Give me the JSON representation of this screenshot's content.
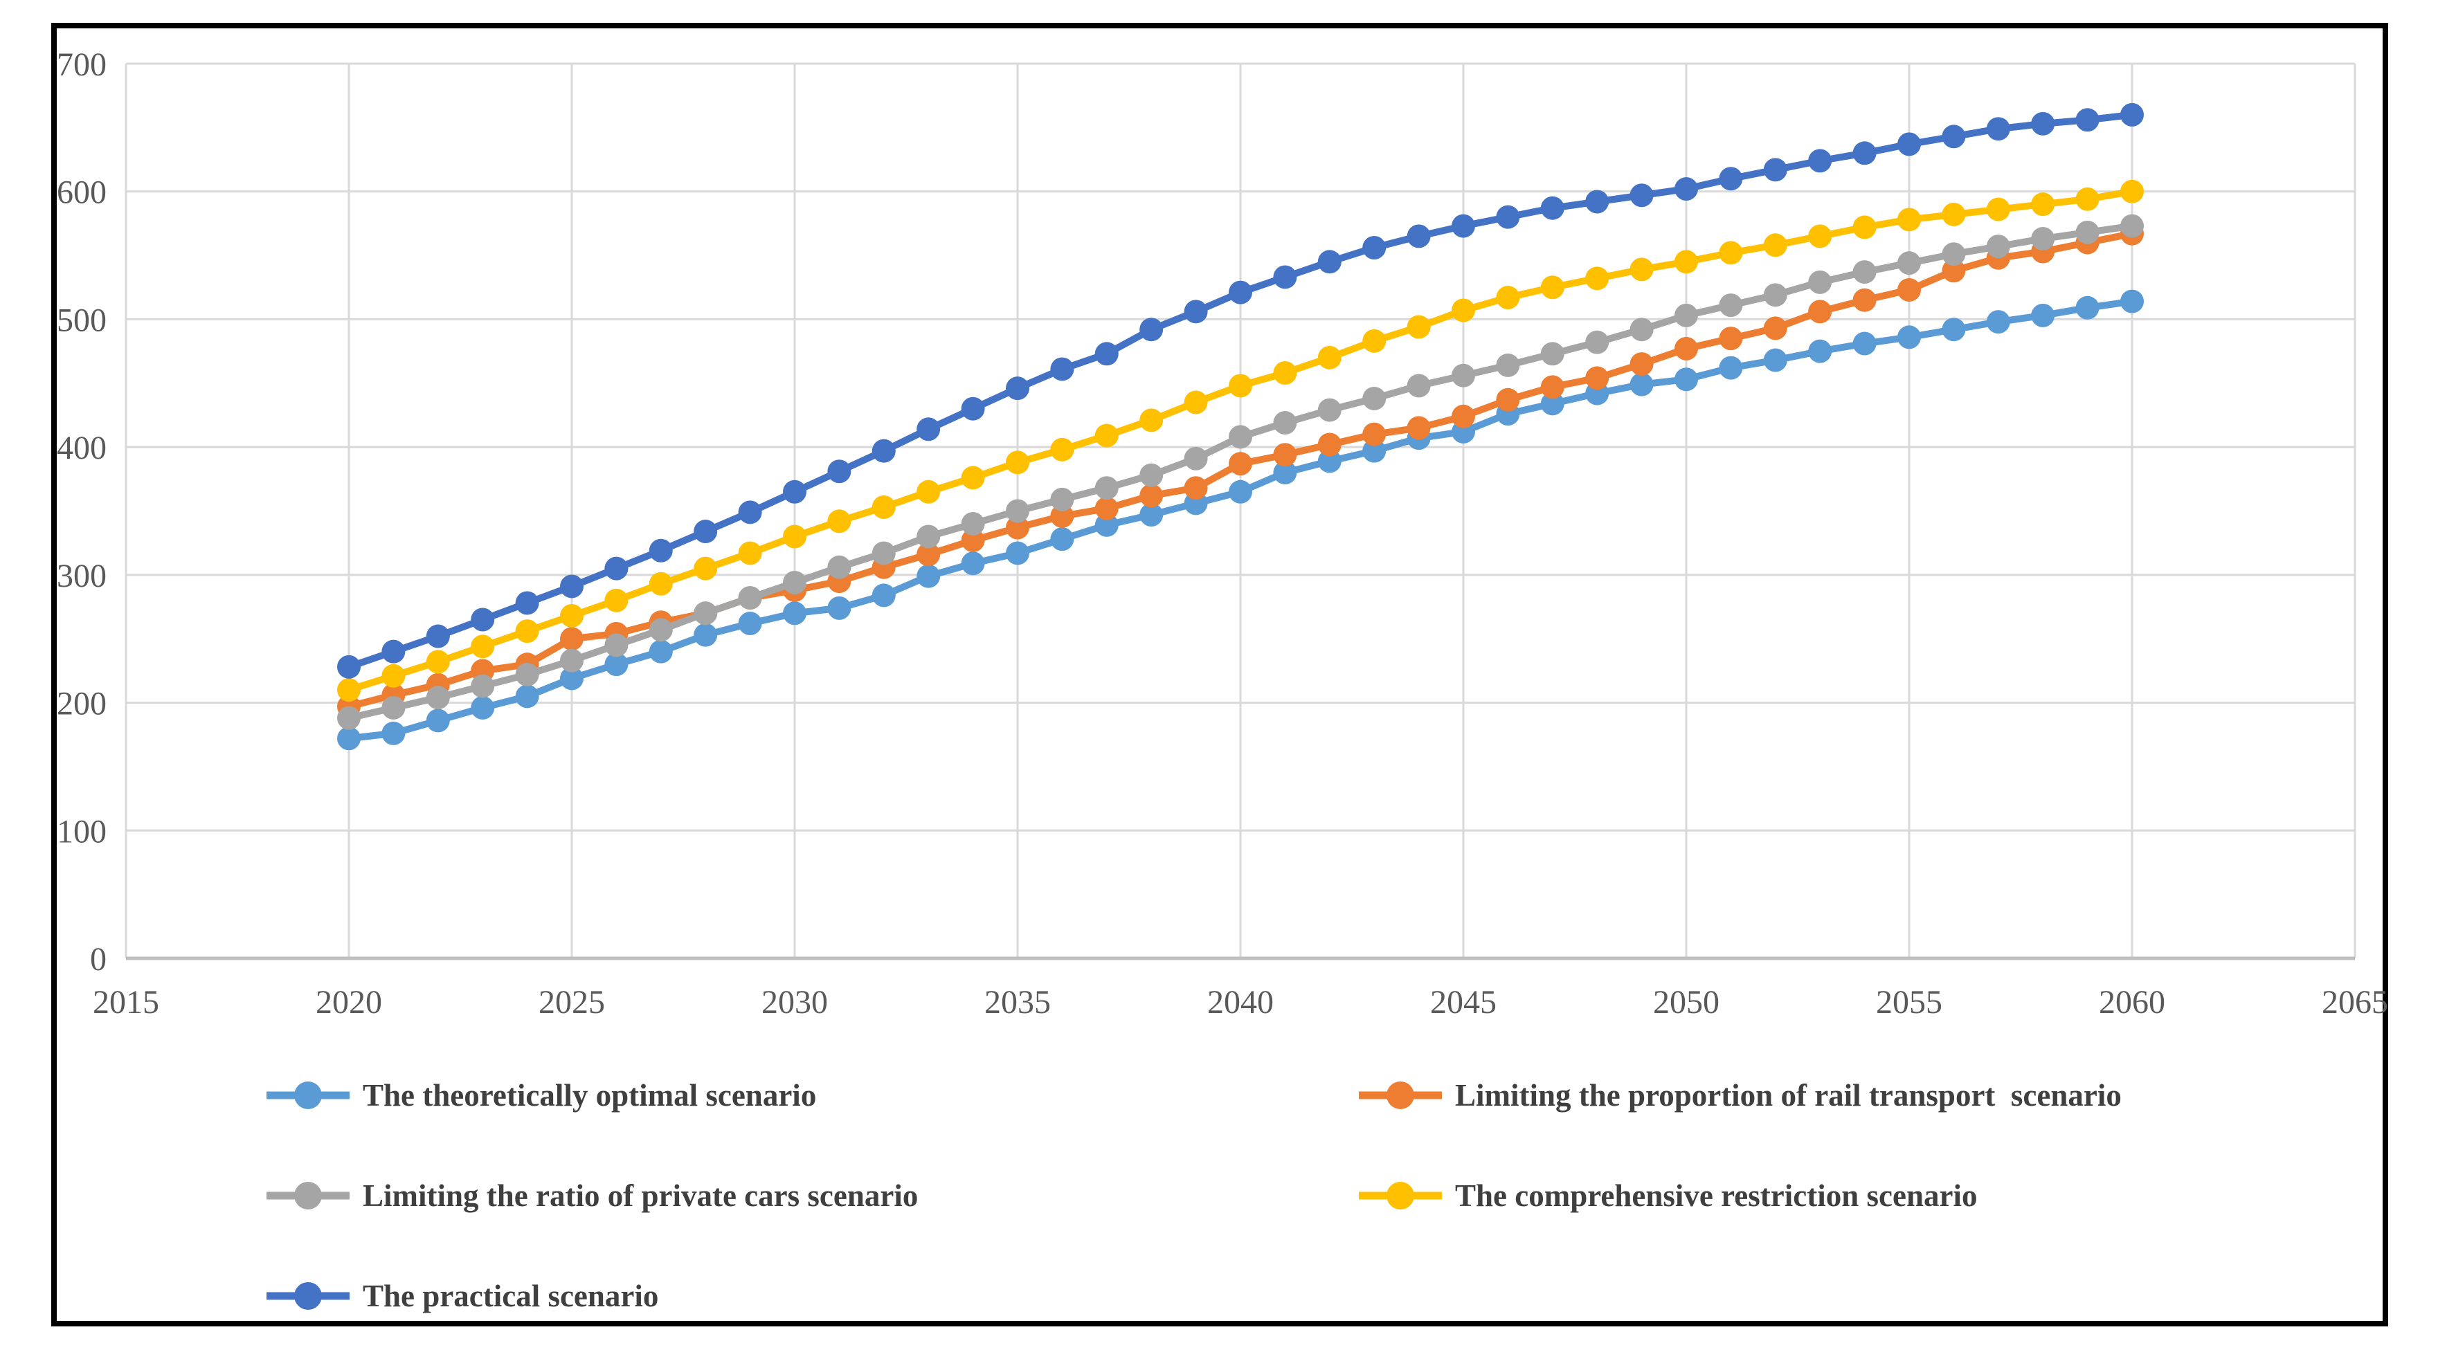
{
  "chart_data": {
    "type": "line",
    "title": "",
    "xlabel": "",
    "ylabel": "",
    "xlim": [
      2015,
      2065
    ],
    "ylim": [
      0,
      700
    ],
    "x_ticks": [
      2015,
      2020,
      2025,
      2030,
      2035,
      2040,
      2045,
      2050,
      2055,
      2060,
      2065
    ],
    "y_ticks": [
      0,
      100,
      200,
      300,
      400,
      500,
      600,
      700
    ],
    "grid": true,
    "legend_position": "bottom",
    "x": [
      2020,
      2021,
      2022,
      2023,
      2024,
      2025,
      2026,
      2027,
      2028,
      2029,
      2030,
      2031,
      2032,
      2033,
      2034,
      2035,
      2036,
      2037,
      2038,
      2039,
      2040,
      2041,
      2042,
      2043,
      2044,
      2045,
      2046,
      2047,
      2048,
      2049,
      2050,
      2051,
      2052,
      2053,
      2054,
      2055,
      2056,
      2057,
      2058,
      2059,
      2060
    ],
    "series": [
      {
        "name": "The theoretically optimal scenario",
        "slug": "theoretically-optimal",
        "color": "#5B9BD5",
        "values": [
          172,
          176,
          186,
          196,
          205,
          219,
          230,
          240,
          253,
          262,
          270,
          274,
          284,
          299,
          309,
          317,
          328,
          339,
          347,
          356,
          365,
          380,
          389,
          397,
          407,
          412,
          426,
          434,
          442,
          449,
          453,
          462,
          468,
          475,
          481,
          486,
          492,
          498,
          503,
          509,
          514
        ]
      },
      {
        "name": "Limiting the proportion of rail transport  scenario",
        "slug": "rail-transport",
        "color": "#ED7D31",
        "values": [
          197,
          206,
          214,
          225,
          230,
          250,
          254,
          263,
          270,
          282,
          288,
          295,
          306,
          316,
          327,
          337,
          346,
          352,
          362,
          368,
          387,
          394,
          402,
          410,
          415,
          424,
          437,
          447,
          454,
          465,
          477,
          485,
          493,
          506,
          515,
          523,
          538,
          548,
          553,
          560,
          567
        ]
      },
      {
        "name": "Limiting the ratio of private cars scenario",
        "slug": "private-cars",
        "color": "#A5A5A5",
        "values": [
          188,
          196,
          204,
          213,
          222,
          233,
          245,
          257,
          270,
          282,
          294,
          306,
          317,
          330,
          340,
          350,
          359,
          368,
          378,
          391,
          408,
          419,
          429,
          438,
          448,
          456,
          464,
          473,
          482,
          492,
          503,
          511,
          519,
          529,
          537,
          544,
          551,
          557,
          563,
          568,
          573
        ]
      },
      {
        "name": "The comprehensive restriction scenario",
        "slug": "comprehensive-restriction",
        "color": "#FFC000",
        "values": [
          210,
          221,
          232,
          244,
          256,
          268,
          280,
          293,
          305,
          317,
          330,
          342,
          353,
          365,
          376,
          388,
          398,
          409,
          421,
          435,
          448,
          458,
          470,
          483,
          494,
          507,
          517,
          525,
          532,
          539,
          545,
          552,
          558,
          565,
          572,
          578,
          582,
          586,
          590,
          594,
          600
        ]
      },
      {
        "name": "The practical scenario",
        "slug": "practical",
        "color": "#4472C4",
        "values": [
          228,
          240,
          252,
          265,
          278,
          291,
          305,
          319,
          334,
          349,
          365,
          381,
          397,
          414,
          430,
          446,
          461,
          473,
          492,
          506,
          521,
          533,
          545,
          556,
          565,
          573,
          580,
          587,
          592,
          597,
          602,
          610,
          617,
          624,
          630,
          637,
          643,
          649,
          653,
          656,
          660
        ]
      }
    ]
  },
  "axes": {
    "x_tick_labels": [
      "2015",
      "2020",
      "2025",
      "2030",
      "2035",
      "2040",
      "2045",
      "2050",
      "2055",
      "2060",
      "2065"
    ],
    "y_tick_labels": [
      "0",
      "100",
      "200",
      "300",
      "400",
      "500",
      "600",
      "700"
    ]
  },
  "legend": {
    "items": [
      {
        "label": "The theoretically optimal scenario",
        "color": "#5B9BD5",
        "marker": "line-circle"
      },
      {
        "label": "Limiting the proportion of rail transport  scenario",
        "color": "#ED7D31",
        "marker": "line-circle"
      },
      {
        "label": "Limiting the ratio of private cars scenario",
        "color": "#A5A5A5",
        "marker": "line-circle"
      },
      {
        "label": "The comprehensive restriction scenario",
        "color": "#FFC000",
        "marker": "line-circle"
      },
      {
        "label": "The practical scenario",
        "color": "#4472C4",
        "marker": "line-circle"
      }
    ]
  },
  "colors": {
    "chart_border": "#000000",
    "gridline": "#D9D9D9",
    "axis_line": "#BFBFBF",
    "tick_label": "#595959",
    "legend_text": "#3f3f3f",
    "background": "#FFFFFF"
  }
}
